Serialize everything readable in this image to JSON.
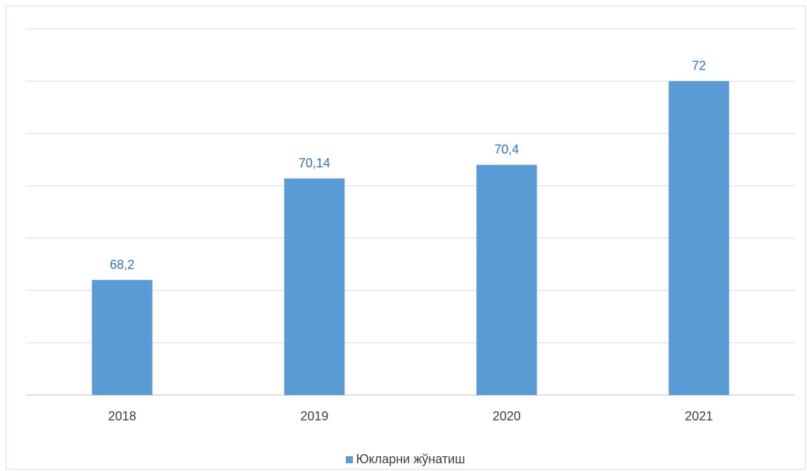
{
  "chart_data": {
    "type": "bar",
    "categories": [
      "2018",
      "2019",
      "2020",
      "2021"
    ],
    "series": [
      {
        "name": "Юкларни жўнатиш",
        "values": [
          68.2,
          70.14,
          70.4,
          72
        ],
        "labels": [
          "68,2",
          "70,14",
          "70,4",
          "72"
        ]
      }
    ],
    "ylim": [
      66,
      73
    ],
    "grid": true,
    "legend": "bottom",
    "colors": {
      "bar": "#5b9bd5",
      "label": "#2e75b6",
      "grid": "#d9d9d9"
    }
  }
}
